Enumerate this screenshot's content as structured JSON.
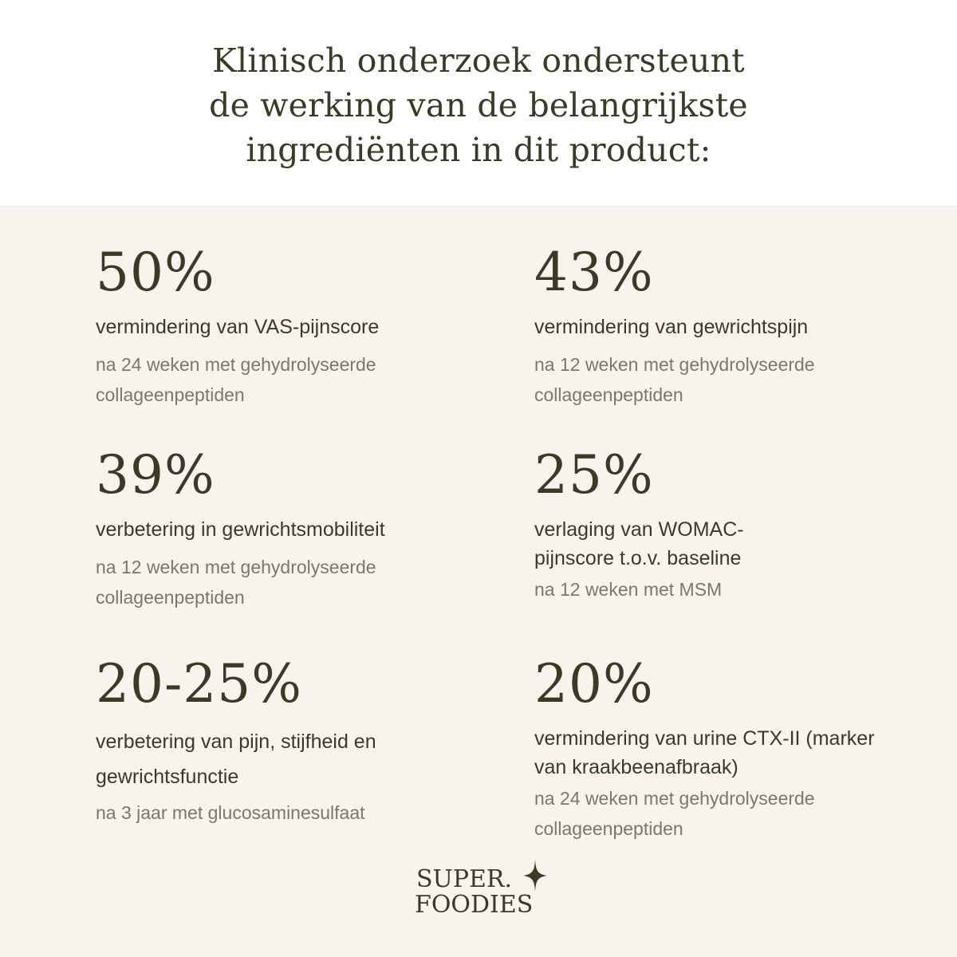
{
  "header": {
    "line1": "Klinisch onderzoek ondersteunt",
    "line2": "de werking van de belangrijkste",
    "line3": "ingrediënten in dit product:"
  },
  "stats": [
    {
      "value": "50%",
      "description": "vermindering van VAS-pijnscore",
      "source": "na 24 weken met gehydrolyseerde collageenpeptiden"
    },
    {
      "value": "43%",
      "description": "vermindering van gewrichtspijn",
      "source": "na 12 weken met gehydrolyseerde collageenpeptiden"
    },
    {
      "value": "39%",
      "description": "verbetering in gewrichtsmobiliteit",
      "source": "na 12 weken met gehydrolyseerde collageenpeptiden"
    },
    {
      "value": "25%",
      "description": "verlaging van WOMAC-pijnscore t.o.v. baseline",
      "source": "na 12 weken met MSM"
    },
    {
      "value": "20-25%",
      "description": "verbetering van pijn, stijfheid en gewrichtsfunctie",
      "source": "na 3 jaar met glucosaminesulfaat"
    },
    {
      "value": "20%",
      "description": "vermindering van urine CTX-II (marker van kraakbeenafbraak)",
      "source": "na 24 weken met gehydrolyseerde collageenpeptiden"
    }
  ],
  "logo": {
    "line1": "SUPER.",
    "line2": "FOODIES",
    "icon": "sparkle-star-icon"
  },
  "colors": {
    "text": "#3b3a26",
    "muted": "#7a7868",
    "panel": "#f7f4ee",
    "background": "#ffffff"
  }
}
